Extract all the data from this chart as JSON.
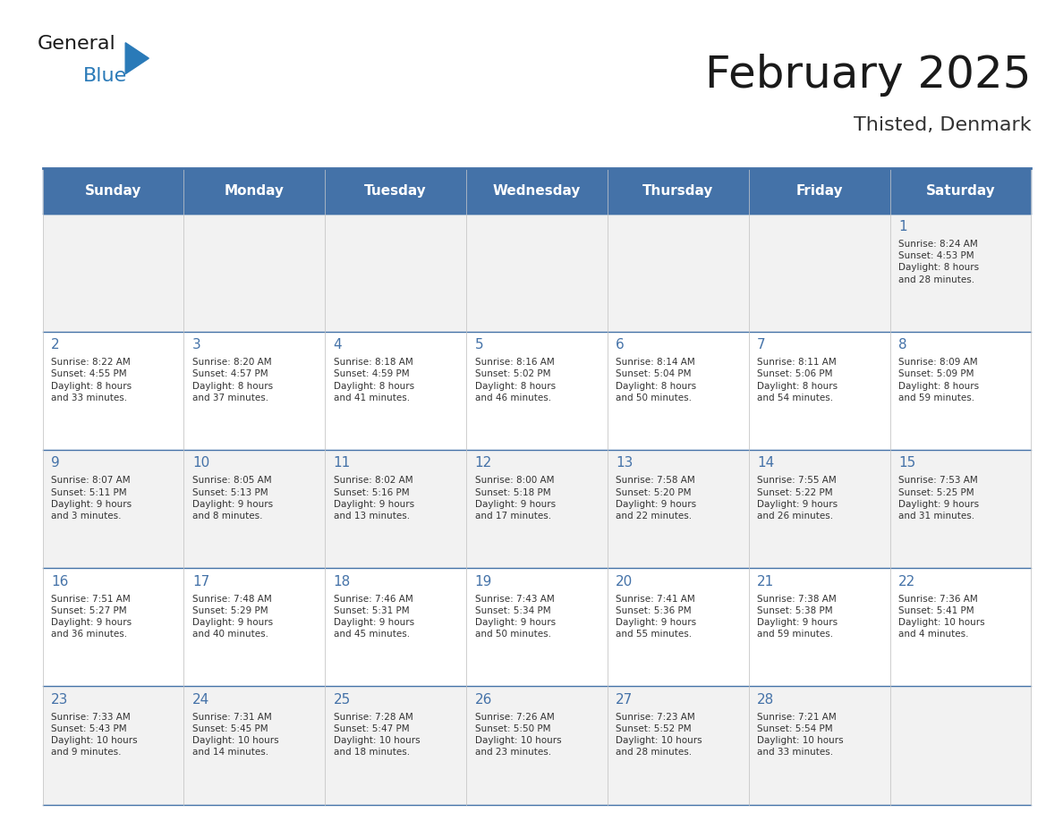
{
  "title": "February 2025",
  "subtitle": "Thisted, Denmark",
  "days_of_week": [
    "Sunday",
    "Monday",
    "Tuesday",
    "Wednesday",
    "Thursday",
    "Friday",
    "Saturday"
  ],
  "header_bg_color": "#4472a8",
  "header_text_color": "#ffffff",
  "cell_bg_even": "#f2f2f2",
  "cell_bg_odd": "#ffffff",
  "cell_border_color": "#4472a8",
  "day_number_color": "#4472a8",
  "text_color": "#333333",
  "weeks": [
    [
      {
        "day": 0,
        "info": ""
      },
      {
        "day": 0,
        "info": ""
      },
      {
        "day": 0,
        "info": ""
      },
      {
        "day": 0,
        "info": ""
      },
      {
        "day": 0,
        "info": ""
      },
      {
        "day": 0,
        "info": ""
      },
      {
        "day": 1,
        "info": "Sunrise: 8:24 AM\nSunset: 4:53 PM\nDaylight: 8 hours\nand 28 minutes."
      }
    ],
    [
      {
        "day": 2,
        "info": "Sunrise: 8:22 AM\nSunset: 4:55 PM\nDaylight: 8 hours\nand 33 minutes."
      },
      {
        "day": 3,
        "info": "Sunrise: 8:20 AM\nSunset: 4:57 PM\nDaylight: 8 hours\nand 37 minutes."
      },
      {
        "day": 4,
        "info": "Sunrise: 8:18 AM\nSunset: 4:59 PM\nDaylight: 8 hours\nand 41 minutes."
      },
      {
        "day": 5,
        "info": "Sunrise: 8:16 AM\nSunset: 5:02 PM\nDaylight: 8 hours\nand 46 minutes."
      },
      {
        "day": 6,
        "info": "Sunrise: 8:14 AM\nSunset: 5:04 PM\nDaylight: 8 hours\nand 50 minutes."
      },
      {
        "day": 7,
        "info": "Sunrise: 8:11 AM\nSunset: 5:06 PM\nDaylight: 8 hours\nand 54 minutes."
      },
      {
        "day": 8,
        "info": "Sunrise: 8:09 AM\nSunset: 5:09 PM\nDaylight: 8 hours\nand 59 minutes."
      }
    ],
    [
      {
        "day": 9,
        "info": "Sunrise: 8:07 AM\nSunset: 5:11 PM\nDaylight: 9 hours\nand 3 minutes."
      },
      {
        "day": 10,
        "info": "Sunrise: 8:05 AM\nSunset: 5:13 PM\nDaylight: 9 hours\nand 8 minutes."
      },
      {
        "day": 11,
        "info": "Sunrise: 8:02 AM\nSunset: 5:16 PM\nDaylight: 9 hours\nand 13 minutes."
      },
      {
        "day": 12,
        "info": "Sunrise: 8:00 AM\nSunset: 5:18 PM\nDaylight: 9 hours\nand 17 minutes."
      },
      {
        "day": 13,
        "info": "Sunrise: 7:58 AM\nSunset: 5:20 PM\nDaylight: 9 hours\nand 22 minutes."
      },
      {
        "day": 14,
        "info": "Sunrise: 7:55 AM\nSunset: 5:22 PM\nDaylight: 9 hours\nand 26 minutes."
      },
      {
        "day": 15,
        "info": "Sunrise: 7:53 AM\nSunset: 5:25 PM\nDaylight: 9 hours\nand 31 minutes."
      }
    ],
    [
      {
        "day": 16,
        "info": "Sunrise: 7:51 AM\nSunset: 5:27 PM\nDaylight: 9 hours\nand 36 minutes."
      },
      {
        "day": 17,
        "info": "Sunrise: 7:48 AM\nSunset: 5:29 PM\nDaylight: 9 hours\nand 40 minutes."
      },
      {
        "day": 18,
        "info": "Sunrise: 7:46 AM\nSunset: 5:31 PM\nDaylight: 9 hours\nand 45 minutes."
      },
      {
        "day": 19,
        "info": "Sunrise: 7:43 AM\nSunset: 5:34 PM\nDaylight: 9 hours\nand 50 minutes."
      },
      {
        "day": 20,
        "info": "Sunrise: 7:41 AM\nSunset: 5:36 PM\nDaylight: 9 hours\nand 55 minutes."
      },
      {
        "day": 21,
        "info": "Sunrise: 7:38 AM\nSunset: 5:38 PM\nDaylight: 9 hours\nand 59 minutes."
      },
      {
        "day": 22,
        "info": "Sunrise: 7:36 AM\nSunset: 5:41 PM\nDaylight: 10 hours\nand 4 minutes."
      }
    ],
    [
      {
        "day": 23,
        "info": "Sunrise: 7:33 AM\nSunset: 5:43 PM\nDaylight: 10 hours\nand 9 minutes."
      },
      {
        "day": 24,
        "info": "Sunrise: 7:31 AM\nSunset: 5:45 PM\nDaylight: 10 hours\nand 14 minutes."
      },
      {
        "day": 25,
        "info": "Sunrise: 7:28 AM\nSunset: 5:47 PM\nDaylight: 10 hours\nand 18 minutes."
      },
      {
        "day": 26,
        "info": "Sunrise: 7:26 AM\nSunset: 5:50 PM\nDaylight: 10 hours\nand 23 minutes."
      },
      {
        "day": 27,
        "info": "Sunrise: 7:23 AM\nSunset: 5:52 PM\nDaylight: 10 hours\nand 28 minutes."
      },
      {
        "day": 28,
        "info": "Sunrise: 7:21 AM\nSunset: 5:54 PM\nDaylight: 10 hours\nand 33 minutes."
      },
      {
        "day": 0,
        "info": ""
      }
    ]
  ]
}
